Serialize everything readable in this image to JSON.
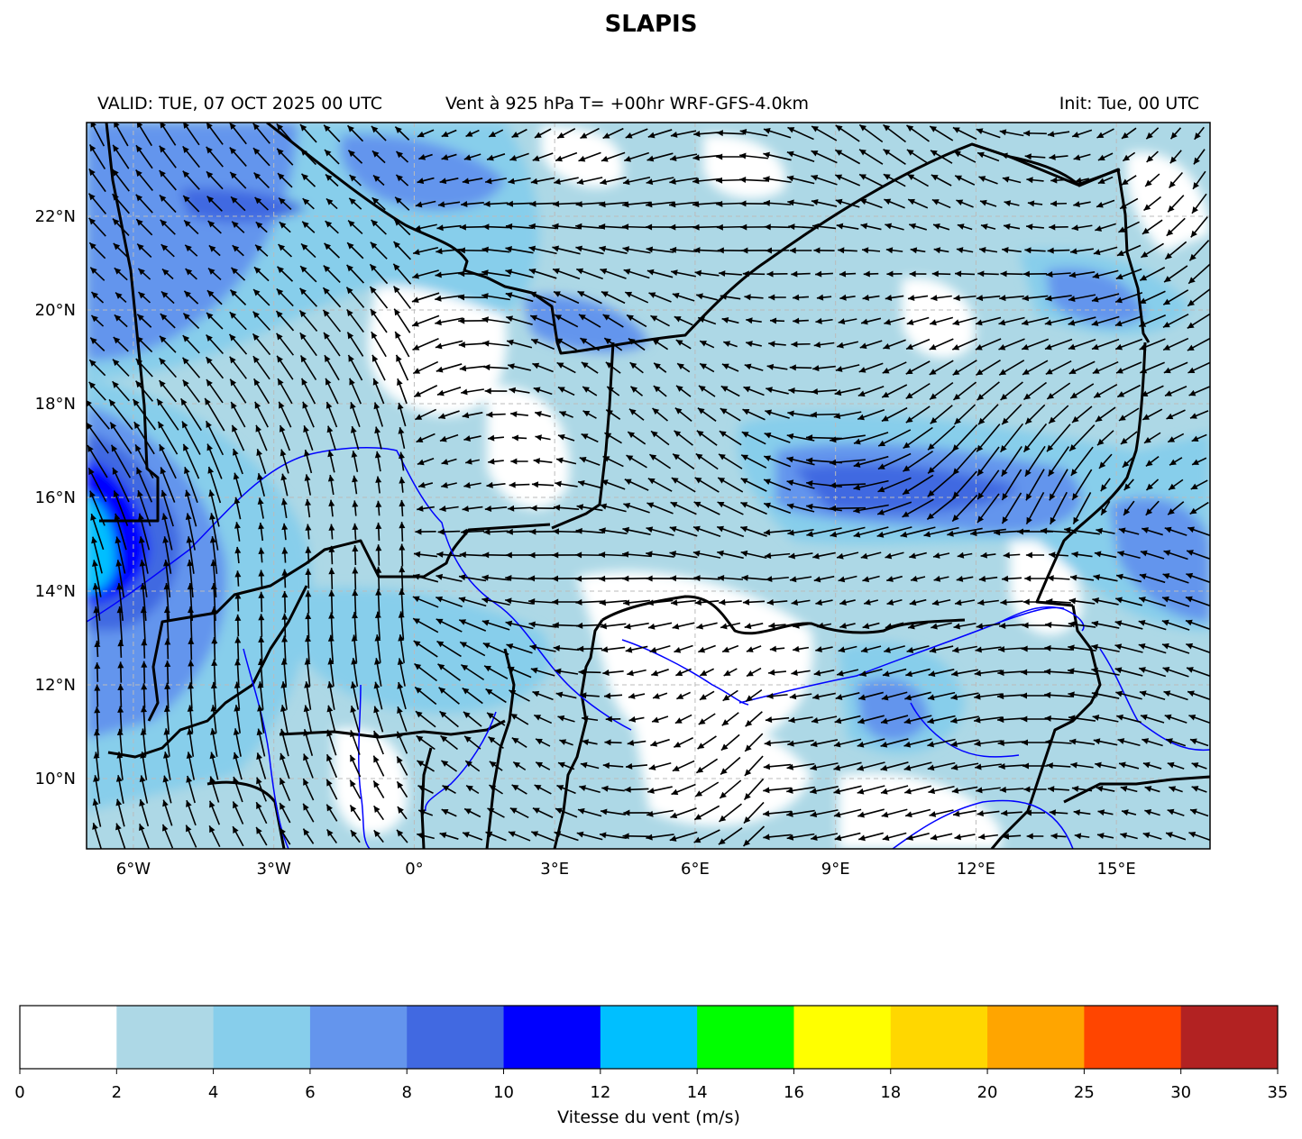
{
  "title": "SLAPIS",
  "header": {
    "valid": "VALID: TUE, 07 OCT 2025 00 UTC",
    "field": "Vent à 925 hPa T= +00hr  WRF-GFS-4.0km",
    "init": "Init: Tue, 00 UTC"
  },
  "map": {
    "extent": {
      "lon": [
        -7.0,
        17.0
      ],
      "lat": [
        8.5,
        24.0
      ]
    },
    "x_ticks": [
      {
        "lon": -6,
        "label": "6°W"
      },
      {
        "lon": -3,
        "label": "3°W"
      },
      {
        "lon": 0,
        "label": "0°"
      },
      {
        "lon": 3,
        "label": "3°E"
      },
      {
        "lon": 6,
        "label": "6°E"
      },
      {
        "lon": 9,
        "label": "9°E"
      },
      {
        "lon": 12,
        "label": "12°E"
      },
      {
        "lon": 15,
        "label": "15°E"
      }
    ],
    "y_ticks": [
      {
        "lat": 10,
        "label": "10°N"
      },
      {
        "lat": 12,
        "label": "12°N"
      },
      {
        "lat": 14,
        "label": "14°N"
      },
      {
        "lat": 16,
        "label": "16°N"
      },
      {
        "lat": 18,
        "label": "18°N"
      },
      {
        "lat": 20,
        "label": "20°N"
      },
      {
        "lat": 22,
        "label": "22°N"
      }
    ],
    "gridlines": true,
    "field_colors": {
      "border": "#000000",
      "rivers": "#0000ff",
      "vectors": "#000000",
      "grid": "#bbbbbb"
    }
  },
  "colorbar": {
    "label": "Vitesse du vent (m/s)",
    "bounds": [
      "0",
      "2",
      "4",
      "6",
      "8",
      "10",
      "12",
      "14",
      "16",
      "18",
      "20",
      "25",
      "30",
      "35"
    ],
    "colors": [
      "#ffffff",
      "#add8e6",
      "#87ceeb",
      "#6495ed",
      "#4169e1",
      "#0000ff",
      "#00bfff",
      "#00ff00",
      "#ffff00",
      "#ffd700",
      "#ffa500",
      "#ff4500",
      "#b22222"
    ]
  }
}
